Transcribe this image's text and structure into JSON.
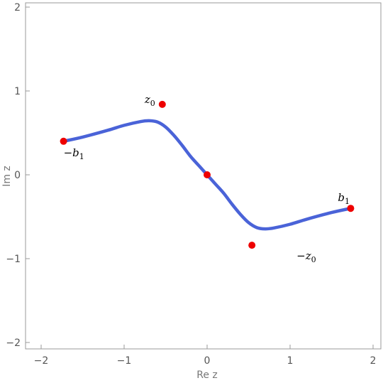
{
  "chart_data": {
    "type": "line",
    "title": "",
    "xlabel": "Re z",
    "ylabel": "Im z",
    "xlim": [
      -2.2,
      2.2
    ],
    "ylim": [
      -2.05,
      2.05
    ],
    "xticks": [
      -2,
      -1,
      0,
      1,
      2
    ],
    "yticks": [
      -2,
      -1,
      0,
      1,
      2
    ],
    "grid": false,
    "colors": {
      "curve": "#4a63d8",
      "points": "#ee0000",
      "frame": "#9a9a9a"
    },
    "series": [
      {
        "type": "line",
        "x": [
          -1.73,
          -1.5,
          -1.2,
          -1.0,
          -0.8,
          -0.7,
          -0.6,
          -0.5,
          -0.4,
          -0.3,
          -0.2,
          -0.1,
          0.0,
          0.1,
          0.2,
          0.3,
          0.4,
          0.5,
          0.6,
          0.7,
          0.8,
          1.0,
          1.2,
          1.5,
          1.73
        ],
        "y": [
          0.4,
          0.45,
          0.53,
          0.59,
          0.635,
          0.645,
          0.63,
          0.57,
          0.47,
          0.35,
          0.22,
          0.11,
          0.0,
          -0.11,
          -0.22,
          -0.35,
          -0.47,
          -0.57,
          -0.63,
          -0.645,
          -0.635,
          -0.59,
          -0.53,
          -0.45,
          -0.4
        ]
      }
    ],
    "points": [
      {
        "x": -1.73,
        "y": 0.4,
        "sign": "−",
        "sym": "b",
        "sub": "1"
      },
      {
        "x": -0.54,
        "y": 0.84,
        "sign": "",
        "sym": "z",
        "sub": "0"
      },
      {
        "x": 0.0,
        "y": 0.0,
        "sign": "",
        "sym": "",
        "sub": ""
      },
      {
        "x": 0.54,
        "y": -0.84,
        "sign": "−",
        "sym": "z",
        "sub": "0"
      },
      {
        "x": 1.73,
        "y": -0.4,
        "sign": "",
        "sym": "b",
        "sub": "1"
      }
    ]
  }
}
